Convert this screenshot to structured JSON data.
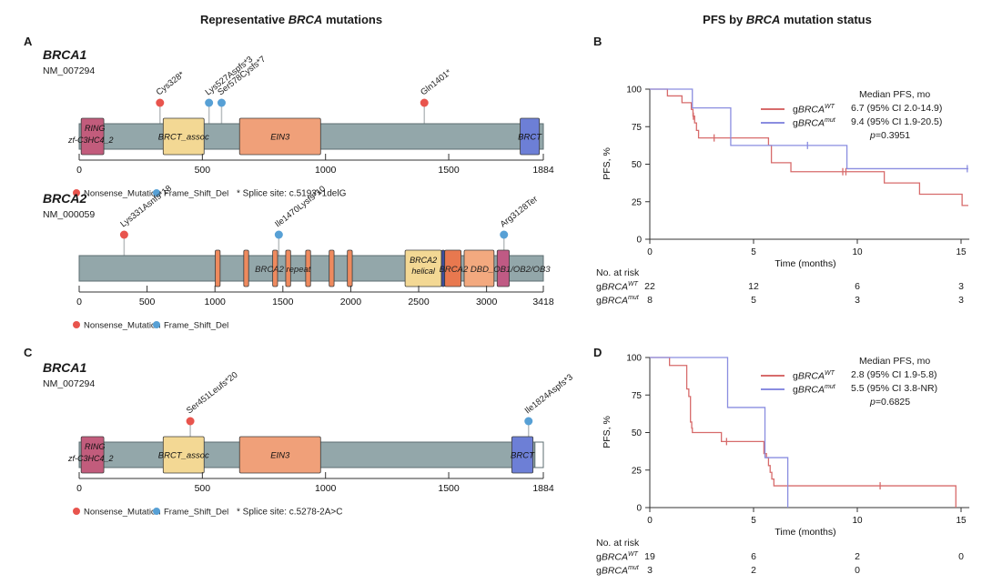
{
  "titles": {
    "left": {
      "pre": "Representative ",
      "em": "BRCA",
      "post": " mutations"
    },
    "right": {
      "pre": "PFS by ",
      "em": "BRCA",
      "post": " mutation status"
    }
  },
  "panel_letters": {
    "a": "A",
    "b": "B",
    "c": "C",
    "d": "D"
  },
  "colors": {
    "nonsense": "#e8544d",
    "frameshift": "#57a0d5",
    "bar": "#93a7aa",
    "bar_stroke": "#5c6e71",
    "stick": "#b9bec0",
    "domain_stroke": "#3c3c3c",
    "axis": "#333333",
    "km_wt": "#d76b6b",
    "km_mut": "#8a8de0"
  },
  "chart_data": [
    {
      "id": "brca1_a",
      "type": "lollipop",
      "gene": "BRCA1",
      "transcript": "NM_007294",
      "axis": {
        "max": 1884,
        "ticks": [
          0,
          500,
          1000,
          1500,
          1884
        ]
      },
      "bar_end": 1884,
      "white_cap": null,
      "domains": [
        {
          "label": "RING",
          "label2": "zf-C3HC4_2",
          "start": 8,
          "end": 100,
          "color": "#c25c7c",
          "mode": "left"
        },
        {
          "label": "BRCT_assoc",
          "start": 341,
          "end": 507,
          "color": "#f3d894",
          "mode": "center"
        },
        {
          "label": "EIN3",
          "start": 651,
          "end": 980,
          "color": "#f0a079",
          "mode": "center"
        },
        {
          "label": "BRCT",
          "start": 1790,
          "end": 1868,
          "color": "#6d7fd6",
          "mode": "center"
        }
      ],
      "bar_labels": [],
      "mutations": [
        {
          "label": "Cys328*",
          "pos": 328,
          "type": "nonsense"
        },
        {
          "label": "Lys527Aspfs*3",
          "pos": 527,
          "type": "frameshift"
        },
        {
          "label": "Ser578Cysfs*7",
          "pos": 578,
          "type": "frameshift"
        },
        {
          "label": "Gln1401*",
          "pos": 1401,
          "type": "nonsense"
        }
      ],
      "legend": [
        {
          "label": "Nonsense_Mutation",
          "type": "nonsense"
        },
        {
          "label": "Frame_Shift_Del",
          "type": "frameshift"
        }
      ],
      "note": "* Splice site: c.5193+1delG"
    },
    {
      "id": "brca2_a",
      "type": "lollipop",
      "gene": "BRCA2",
      "transcript": "NM_000059",
      "axis": {
        "max": 3418,
        "ticks": [
          0,
          500,
          1000,
          1500,
          2000,
          2500,
          3000,
          3418
        ]
      },
      "bar_end": 3418,
      "white_cap": null,
      "domains": [
        {
          "start": 1002,
          "end": 1038,
          "color": "#ee8a5e"
        },
        {
          "start": 1212,
          "end": 1248,
          "color": "#ee8a5e"
        },
        {
          "start": 1425,
          "end": 1461,
          "color": "#ee8a5e"
        },
        {
          "start": 1521,
          "end": 1557,
          "color": "#ee8a5e"
        },
        {
          "start": 1668,
          "end": 1704,
          "color": "#ee8a5e"
        },
        {
          "start": 1841,
          "end": 1877,
          "color": "#ee8a5e"
        },
        {
          "start": 1975,
          "end": 2011,
          "color": "#ee8a5e"
        },
        {
          "label": "BRCA2",
          "label2": "helical",
          "start": 2400,
          "end": 2668,
          "color": "#f3d894",
          "mode": "center2"
        },
        {
          "start": 2668,
          "end": 2692,
          "color": "#3d4e9e"
        },
        {
          "start": 2692,
          "end": 2812,
          "color": "#e8784f"
        },
        {
          "start": 2835,
          "end": 3055,
          "color": "#f3a97f"
        },
        {
          "start": 3078,
          "end": 3167,
          "color": "#c05a84"
        }
      ],
      "bar_labels": [
        {
          "text": "BRCA2 repeat",
          "pos": 1500
        },
        {
          "text": "BRCA2 DBD_OB1/OB2/OB3",
          "pos": 3060
        }
      ],
      "mutations": [
        {
          "label": "Lys331Asnfs*18",
          "pos": 331,
          "type": "nonsense"
        },
        {
          "label": "Ile1470Lysfs*10",
          "pos": 1470,
          "type": "frameshift"
        },
        {
          "label": "Arg3128Ter",
          "pos": 3128,
          "type": "frameshift"
        }
      ],
      "legend": [
        {
          "label": "Nonsense_Mutation",
          "type": "nonsense"
        },
        {
          "label": "Frame_Shift_Del",
          "type": "frameshift"
        }
      ],
      "note": null
    },
    {
      "id": "brca1_c",
      "type": "lollipop",
      "gene": "BRCA1",
      "transcript": "NM_007294",
      "axis": {
        "max": 1884,
        "ticks": [
          0,
          500,
          1000,
          1500,
          1884
        ]
      },
      "bar_end": 1850,
      "white_cap": {
        "start": 1850,
        "end": 1884
      },
      "domains": [
        {
          "label": "RING",
          "label2": "zf-C3HC4_2",
          "start": 8,
          "end": 100,
          "color": "#c25c7c",
          "mode": "left"
        },
        {
          "label": "BRCT_assoc",
          "start": 341,
          "end": 507,
          "color": "#f3d894",
          "mode": "center"
        },
        {
          "label": "EIN3",
          "start": 651,
          "end": 980,
          "color": "#f0a079",
          "mode": "center"
        },
        {
          "label": "BRCT",
          "start": 1756,
          "end": 1842,
          "color": "#6d7fd6",
          "mode": "center"
        }
      ],
      "bar_labels": [],
      "mutations": [
        {
          "label": "Ser451Leufs*20",
          "pos": 451,
          "type": "nonsense"
        },
        {
          "label": "Ile1824Aspfs*3",
          "pos": 1824,
          "type": "frameshift"
        }
      ],
      "legend": [
        {
          "label": "Nonsense_Mutation",
          "type": "nonsense"
        },
        {
          "label": "Frame_Shift_Del",
          "type": "frameshift"
        }
      ],
      "note": "* Splice site: c.5278-2A>C"
    },
    {
      "id": "km_b",
      "type": "km",
      "legend_title": "Median PFS, mo",
      "x_label": "Time (months)",
      "y_label": "PFS, %",
      "x_ticks": [
        0,
        5,
        10,
        15
      ],
      "y_ticks": [
        0,
        25,
        50,
        75,
        100
      ],
      "x_end": 15.4,
      "xlim": [
        0,
        15.4
      ],
      "ylim": [
        0,
        100
      ],
      "series": [
        {
          "name_prefix": "g",
          "name_gene": "BRCA",
          "name_sup": "WT",
          "color": "#d76b6b",
          "stats": "6.7 (95% CI 2.0-14.9)",
          "drops": [
            [
              0.85,
              95.5
            ],
            [
              1.55,
              91
            ],
            [
              2.0,
              86.5
            ],
            [
              2.08,
              82
            ],
            [
              2.16,
              77.5
            ],
            [
              2.25,
              72.5
            ],
            [
              2.35,
              67.5
            ],
            [
              5.72,
              62.5
            ],
            [
              5.86,
              51
            ],
            [
              6.8,
              45
            ],
            [
              11.3,
              37.5
            ],
            [
              13.0,
              30
            ],
            [
              15.05,
              22.5
            ]
          ],
          "end": 15.35,
          "censors": [
            [
              2.1,
              82
            ],
            [
              3.1,
              67.5
            ],
            [
              9.3,
              45
            ],
            [
              9.45,
              45
            ]
          ]
        },
        {
          "name_prefix": "g",
          "name_gene": "BRCA",
          "name_sup": "mut",
          "color": "#8a8de0",
          "stats": "9.4 (95% CI 1.9-20.5)",
          "drops": [
            [
              2.05,
              87.5
            ],
            [
              3.9,
              62.5
            ],
            [
              9.5,
              47
            ]
          ],
          "end": 15.35,
          "censors": [
            [
              7.6,
              62.5
            ],
            [
              15.3,
              47
            ]
          ]
        }
      ],
      "p_sym": "p",
      "p_val": "=0.3951",
      "risk": {
        "header": "No. at risk",
        "times": [
          0,
          5,
          10,
          15
        ],
        "rows": [
          {
            "prefix": "g",
            "gene": "BRCA",
            "sup": "WT",
            "counts": [
              "22",
              "12",
              "6",
              "3"
            ]
          },
          {
            "prefix": "g",
            "gene": "BRCA",
            "sup": "mut",
            "counts": [
              "8",
              "5",
              "3",
              "3"
            ]
          }
        ]
      }
    },
    {
      "id": "km_d",
      "type": "km",
      "legend_title": "Median PFS, mo",
      "x_label": "Time (months)",
      "y_label": "PFS, %",
      "x_ticks": [
        0,
        5,
        10,
        15
      ],
      "y_ticks": [
        0,
        25,
        50,
        75,
        100
      ],
      "x_end": 15.4,
      "xlim": [
        0,
        15.4
      ],
      "ylim": [
        0,
        100
      ],
      "series": [
        {
          "name_prefix": "g",
          "name_gene": "BRCA",
          "name_sup": "WT",
          "color": "#d76b6b",
          "stats": "2.8 (95% CI 1.9-5.8)",
          "drops": [
            [
              0.95,
              94.7
            ],
            [
              1.78,
              79
            ],
            [
              1.88,
              74
            ],
            [
              1.96,
              57
            ],
            [
              2.02,
              53
            ],
            [
              2.05,
              50
            ],
            [
              3.45,
              44
            ],
            [
              5.5,
              36
            ],
            [
              5.62,
              33.3
            ],
            [
              5.72,
              28
            ],
            [
              5.8,
              23.5
            ],
            [
              5.88,
              19
            ],
            [
              5.98,
              14.5
            ],
            [
              14.75,
              0
            ]
          ],
          "end": 14.75,
          "censors": [
            [
              3.7,
              44
            ],
            [
              11.1,
              14.5
            ]
          ]
        },
        {
          "name_prefix": "g",
          "name_gene": "BRCA",
          "name_sup": "mut",
          "color": "#8a8de0",
          "stats": "5.5 (95% CI 3.8-NR)",
          "drops": [
            [
              3.75,
              66.7
            ],
            [
              5.55,
              33.3
            ],
            [
              6.65,
              0
            ]
          ],
          "end": 6.65,
          "censors": []
        }
      ],
      "p_sym": "p",
      "p_val": "=0.6825",
      "risk": {
        "header": "No. at risk",
        "times": [
          0,
          5,
          10,
          15
        ],
        "rows": [
          {
            "prefix": "g",
            "gene": "BRCA",
            "sup": "WT",
            "counts": [
              "19",
              "6",
              "2",
              "0"
            ]
          },
          {
            "prefix": "g",
            "gene": "BRCA",
            "sup": "mut",
            "counts": [
              "3",
              "2",
              "0",
              ""
            ]
          }
        ]
      }
    }
  ]
}
